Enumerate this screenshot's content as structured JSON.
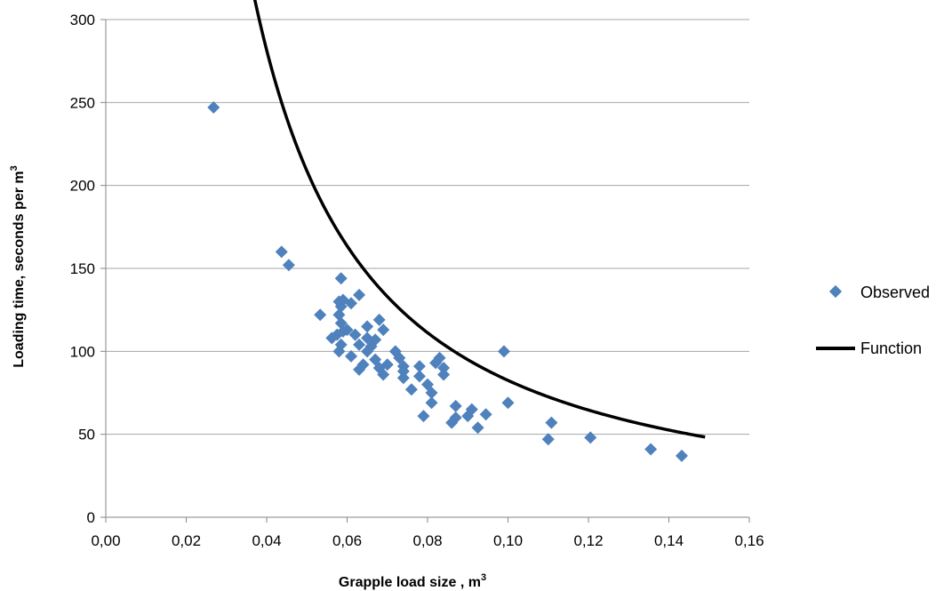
{
  "chart_data": {
    "type": "scatter",
    "title": "",
    "xlabel": "Grapple load size , m",
    "xlabel_sup": "3",
    "ylabel": "Loading time, seconds per m",
    "ylabel_sup": "3",
    "xlim": [
      0,
      0.16
    ],
    "ylim": [
      0,
      300
    ],
    "x_ticks": [
      0,
      0.02,
      0.04,
      0.06,
      0.08,
      0.1,
      0.12,
      0.14,
      0.16
    ],
    "x_tick_labels": [
      "0,00",
      "0,02",
      "0,04",
      "0,06",
      "0,08",
      "0,10",
      "0,12",
      "0,14",
      "0,16"
    ],
    "y_ticks": [
      0,
      50,
      100,
      150,
      200,
      250,
      300
    ],
    "y_tick_labels": [
      "0",
      "50",
      "100",
      "150",
      "200",
      "250",
      "300"
    ],
    "grid": "horizontal",
    "legend_position": "right",
    "colors": {
      "observed": "#4f81bd",
      "function": "#000000",
      "grid": "#a6a6a6",
      "axis": "#868686"
    },
    "series": [
      {
        "name": "Observed",
        "kind": "scatter",
        "marker": "diamond",
        "points": [
          [
            0.0268,
            247
          ],
          [
            0.0437,
            160
          ],
          [
            0.0455,
            152
          ],
          [
            0.0533,
            122
          ],
          [
            0.0562,
            108
          ],
          [
            0.0575,
            110
          ],
          [
            0.0585,
            144
          ],
          [
            0.058,
            130
          ],
          [
            0.0585,
            127
          ],
          [
            0.059,
            131
          ],
          [
            0.058,
            122
          ],
          [
            0.0585,
            117
          ],
          [
            0.059,
            112
          ],
          [
            0.0585,
            104
          ],
          [
            0.058,
            100
          ],
          [
            0.061,
            129
          ],
          [
            0.06,
            113
          ],
          [
            0.062,
            110
          ],
          [
            0.061,
            97
          ],
          [
            0.063,
            134
          ],
          [
            0.063,
            104
          ],
          [
            0.064,
            92
          ],
          [
            0.063,
            89
          ],
          [
            0.065,
            115
          ],
          [
            0.065,
            108
          ],
          [
            0.066,
            103
          ],
          [
            0.065,
            100
          ],
          [
            0.067,
            107
          ],
          [
            0.068,
            119
          ],
          [
            0.069,
            113
          ],
          [
            0.067,
            95
          ],
          [
            0.068,
            90
          ],
          [
            0.069,
            86
          ],
          [
            0.07,
            92
          ],
          [
            0.072,
            100
          ],
          [
            0.073,
            96
          ],
          [
            0.074,
            91
          ],
          [
            0.074,
            88
          ],
          [
            0.074,
            84
          ],
          [
            0.076,
            77
          ],
          [
            0.078,
            91
          ],
          [
            0.078,
            85
          ],
          [
            0.079,
            61
          ],
          [
            0.08,
            80
          ],
          [
            0.081,
            75
          ],
          [
            0.081,
            69
          ],
          [
            0.082,
            93
          ],
          [
            0.083,
            96
          ],
          [
            0.084,
            90
          ],
          [
            0.084,
            86
          ],
          [
            0.086,
            57
          ],
          [
            0.087,
            67
          ],
          [
            0.087,
            60
          ],
          [
            0.09,
            61
          ],
          [
            0.091,
            65
          ],
          [
            0.0925,
            54
          ],
          [
            0.0945,
            62
          ],
          [
            0.099,
            100
          ],
          [
            0.1,
            69
          ],
          [
            0.11,
            47
          ],
          [
            0.1108,
            57
          ],
          [
            0.1205,
            48
          ],
          [
            0.1355,
            41
          ],
          [
            0.1432,
            37
          ]
        ]
      },
      {
        "name": "Function",
        "kind": "line",
        "x_range": [
          0.025,
          0.149
        ],
        "formula": "y = a * x^b",
        "a": 3.77,
        "b": -1.34
      }
    ]
  }
}
